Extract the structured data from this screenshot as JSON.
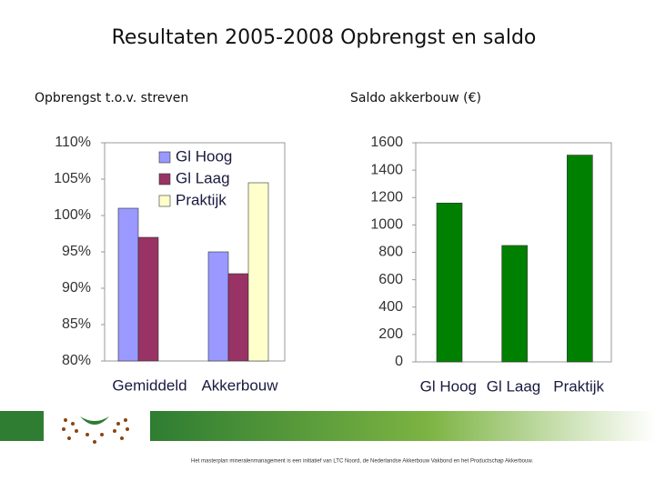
{
  "title": "Resultaten 2005-2008 Opbrengst en saldo",
  "chart_data": [
    {
      "type": "bar",
      "title": "Opbrengst t.o.v. streven",
      "categories": [
        "Gemiddeld",
        "Akkerbouw"
      ],
      "series": [
        {
          "name": "Gl Hoog",
          "color": "#9999ff",
          "values": [
            101,
            95
          ]
        },
        {
          "name": "Gl Laag",
          "color": "#993366",
          "values": [
            97,
            92
          ]
        },
        {
          "name": "Praktijk",
          "color": "#ffffcc",
          "values": [
            null,
            104.5
          ]
        }
      ],
      "ylim": [
        80,
        110
      ],
      "yticks": [
        {
          "value": 80,
          "label": "80%"
        },
        {
          "value": 85,
          "label": "85%"
        },
        {
          "value": 90,
          "label": "90%"
        },
        {
          "value": 95,
          "label": "95%"
        },
        {
          "value": 100,
          "label": "100%"
        },
        {
          "value": 105,
          "label": "105%"
        },
        {
          "value": 110,
          "label": "110%"
        }
      ],
      "grid": false,
      "legend": "top"
    },
    {
      "type": "bar",
      "title": "Saldo akkerbouw (€)",
      "categories": [
        "Gl Hoog",
        "Gl Laag",
        "Praktijk"
      ],
      "values": [
        1160,
        850,
        1510
      ],
      "color": "#008000",
      "ylim": [
        0,
        1600
      ],
      "yticks": [
        0,
        200,
        400,
        600,
        800,
        1000,
        1200,
        1400,
        1600
      ],
      "grid": false
    }
  ],
  "footer_text": "Het masterplan mineralenmanagement is een initiatief van LTC Noord, de Nederlandse Akkerbouw Vakbond en het Productschap Akkerbouw."
}
